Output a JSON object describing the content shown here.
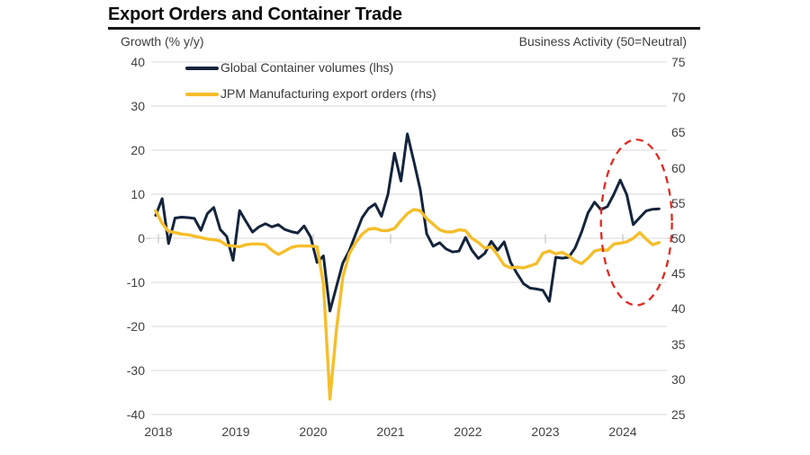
{
  "title": "Export Orders and Container Trade",
  "chart_data": {
    "type": "line",
    "title": "Export Orders and Container Trade",
    "frequency": "monthly",
    "x_start": "2018-01",
    "x_end": "2024-07",
    "x_tick_labels": [
      "2018",
      "2019",
      "2020",
      "2021",
      "2022",
      "2023",
      "2024"
    ],
    "grid": "horizontal",
    "legend_position": "top-left-inside",
    "y_left": {
      "label": "Growth (% y/y)",
      "min": -40,
      "max": 40,
      "ticks": [
        40,
        30,
        20,
        10,
        0,
        -10,
        -20,
        -30,
        -40
      ]
    },
    "y_right": {
      "label": "Business Activity (50=Neutral)",
      "min": 25,
      "max": 75,
      "neutral_level": 50,
      "ticks": [
        75,
        70,
        65,
        60,
        55,
        50,
        45,
        40,
        35,
        30,
        25
      ]
    },
    "series": [
      {
        "name": "Global Container volumes (lhs)",
        "axis": "left",
        "color": "#14243c",
        "values": [
          5.2,
          9.0,
          -1.2,
          4.6,
          4.8,
          4.7,
          4.5,
          1.8,
          5.6,
          7.0,
          2.0,
          0.4,
          -5.0,
          6.3,
          3.8,
          1.4,
          2.6,
          3.3,
          2.6,
          3.1,
          2.0,
          1.5,
          1.2,
          2.8,
          0.3,
          -5.5,
          -4.0,
          -16.5,
          -11.0,
          -5.6,
          -2.8,
          1.0,
          4.7,
          6.8,
          7.8,
          5.0,
          10.0,
          19.3,
          13.0,
          23.7,
          17.5,
          11.0,
          1.0,
          -1.8,
          -1.0,
          -2.4,
          -3.1,
          -2.9,
          0.2,
          -2.7,
          -4.6,
          -3.4,
          -0.7,
          -2.7,
          -0.8,
          -5.5,
          -8.0,
          -10.3,
          -11.3,
          -11.5,
          -11.8,
          -14.3,
          -4.3,
          -4.5,
          -4.3,
          -2.2,
          1.4,
          5.8,
          8.2,
          6.5,
          7.2,
          10.0,
          13.2,
          9.9,
          3.1,
          4.7,
          6.2,
          6.6,
          6.7
        ]
      },
      {
        "name": "JPM Manufacturing export orders (rhs)",
        "axis": "right",
        "color": "#f5be2b",
        "values": [
          53.9,
          52.1,
          51.0,
          50.8,
          50.6,
          50.5,
          50.3,
          50.1,
          49.9,
          49.8,
          49.6,
          49.0,
          48.9,
          48.8,
          49.1,
          49.2,
          49.2,
          49.1,
          48.3,
          47.7,
          48.2,
          48.7,
          48.9,
          48.9,
          48.9,
          48.8,
          43.5,
          27.2,
          37.0,
          44.5,
          47.8,
          49.4,
          50.6,
          51.3,
          51.4,
          51.1,
          51.1,
          51.4,
          52.5,
          53.5,
          54.1,
          53.9,
          52.8,
          52.0,
          51.2,
          50.9,
          50.9,
          51.2,
          51.1,
          50.0,
          49.4,
          48.6,
          48.8,
          47.6,
          46.2,
          45.8,
          45.9,
          45.8,
          46.1,
          46.4,
          47.9,
          48.2,
          47.8,
          48.0,
          47.5,
          46.8,
          46.4,
          47.2,
          48.2,
          48.4,
          48.3,
          49.2,
          49.3,
          49.5,
          50.0,
          50.8,
          49.9,
          49.1,
          49.4
        ]
      }
    ],
    "annotation": {
      "shape": "dashed-ellipse",
      "color": "#df2a1f",
      "x_months": [
        "2023-10",
        "2024-09"
      ],
      "y_right_span": [
        40.5,
        64.0
      ]
    }
  }
}
